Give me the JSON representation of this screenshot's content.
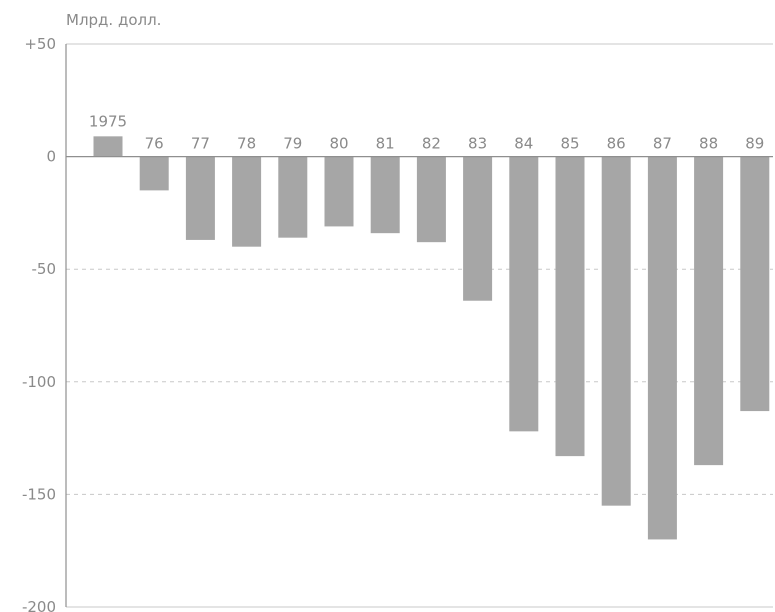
{
  "chart_data": {
    "type": "bar",
    "ylabel": "Млрд. долл.",
    "categories": [
      "1975",
      "76",
      "77",
      "78",
      "79",
      "80",
      "81",
      "82",
      "83",
      "84",
      "85",
      "86",
      "87",
      "88",
      "89"
    ],
    "values": [
      9,
      -15,
      -37,
      -40,
      -36,
      -31,
      -34,
      -38,
      -64,
      -122,
      -133,
      -155,
      -170,
      -137,
      -113
    ],
    "ylim": [
      -200,
      50
    ],
    "yticks": [
      50,
      0,
      -50,
      -100,
      -150,
      -200
    ],
    "ytick_labels": [
      "+50",
      "0",
      "-50",
      "-100",
      "-150",
      "-200"
    ],
    "grid": "dashed horizontal at -50, -100, -150",
    "bar_color": "#a6a6a6"
  }
}
